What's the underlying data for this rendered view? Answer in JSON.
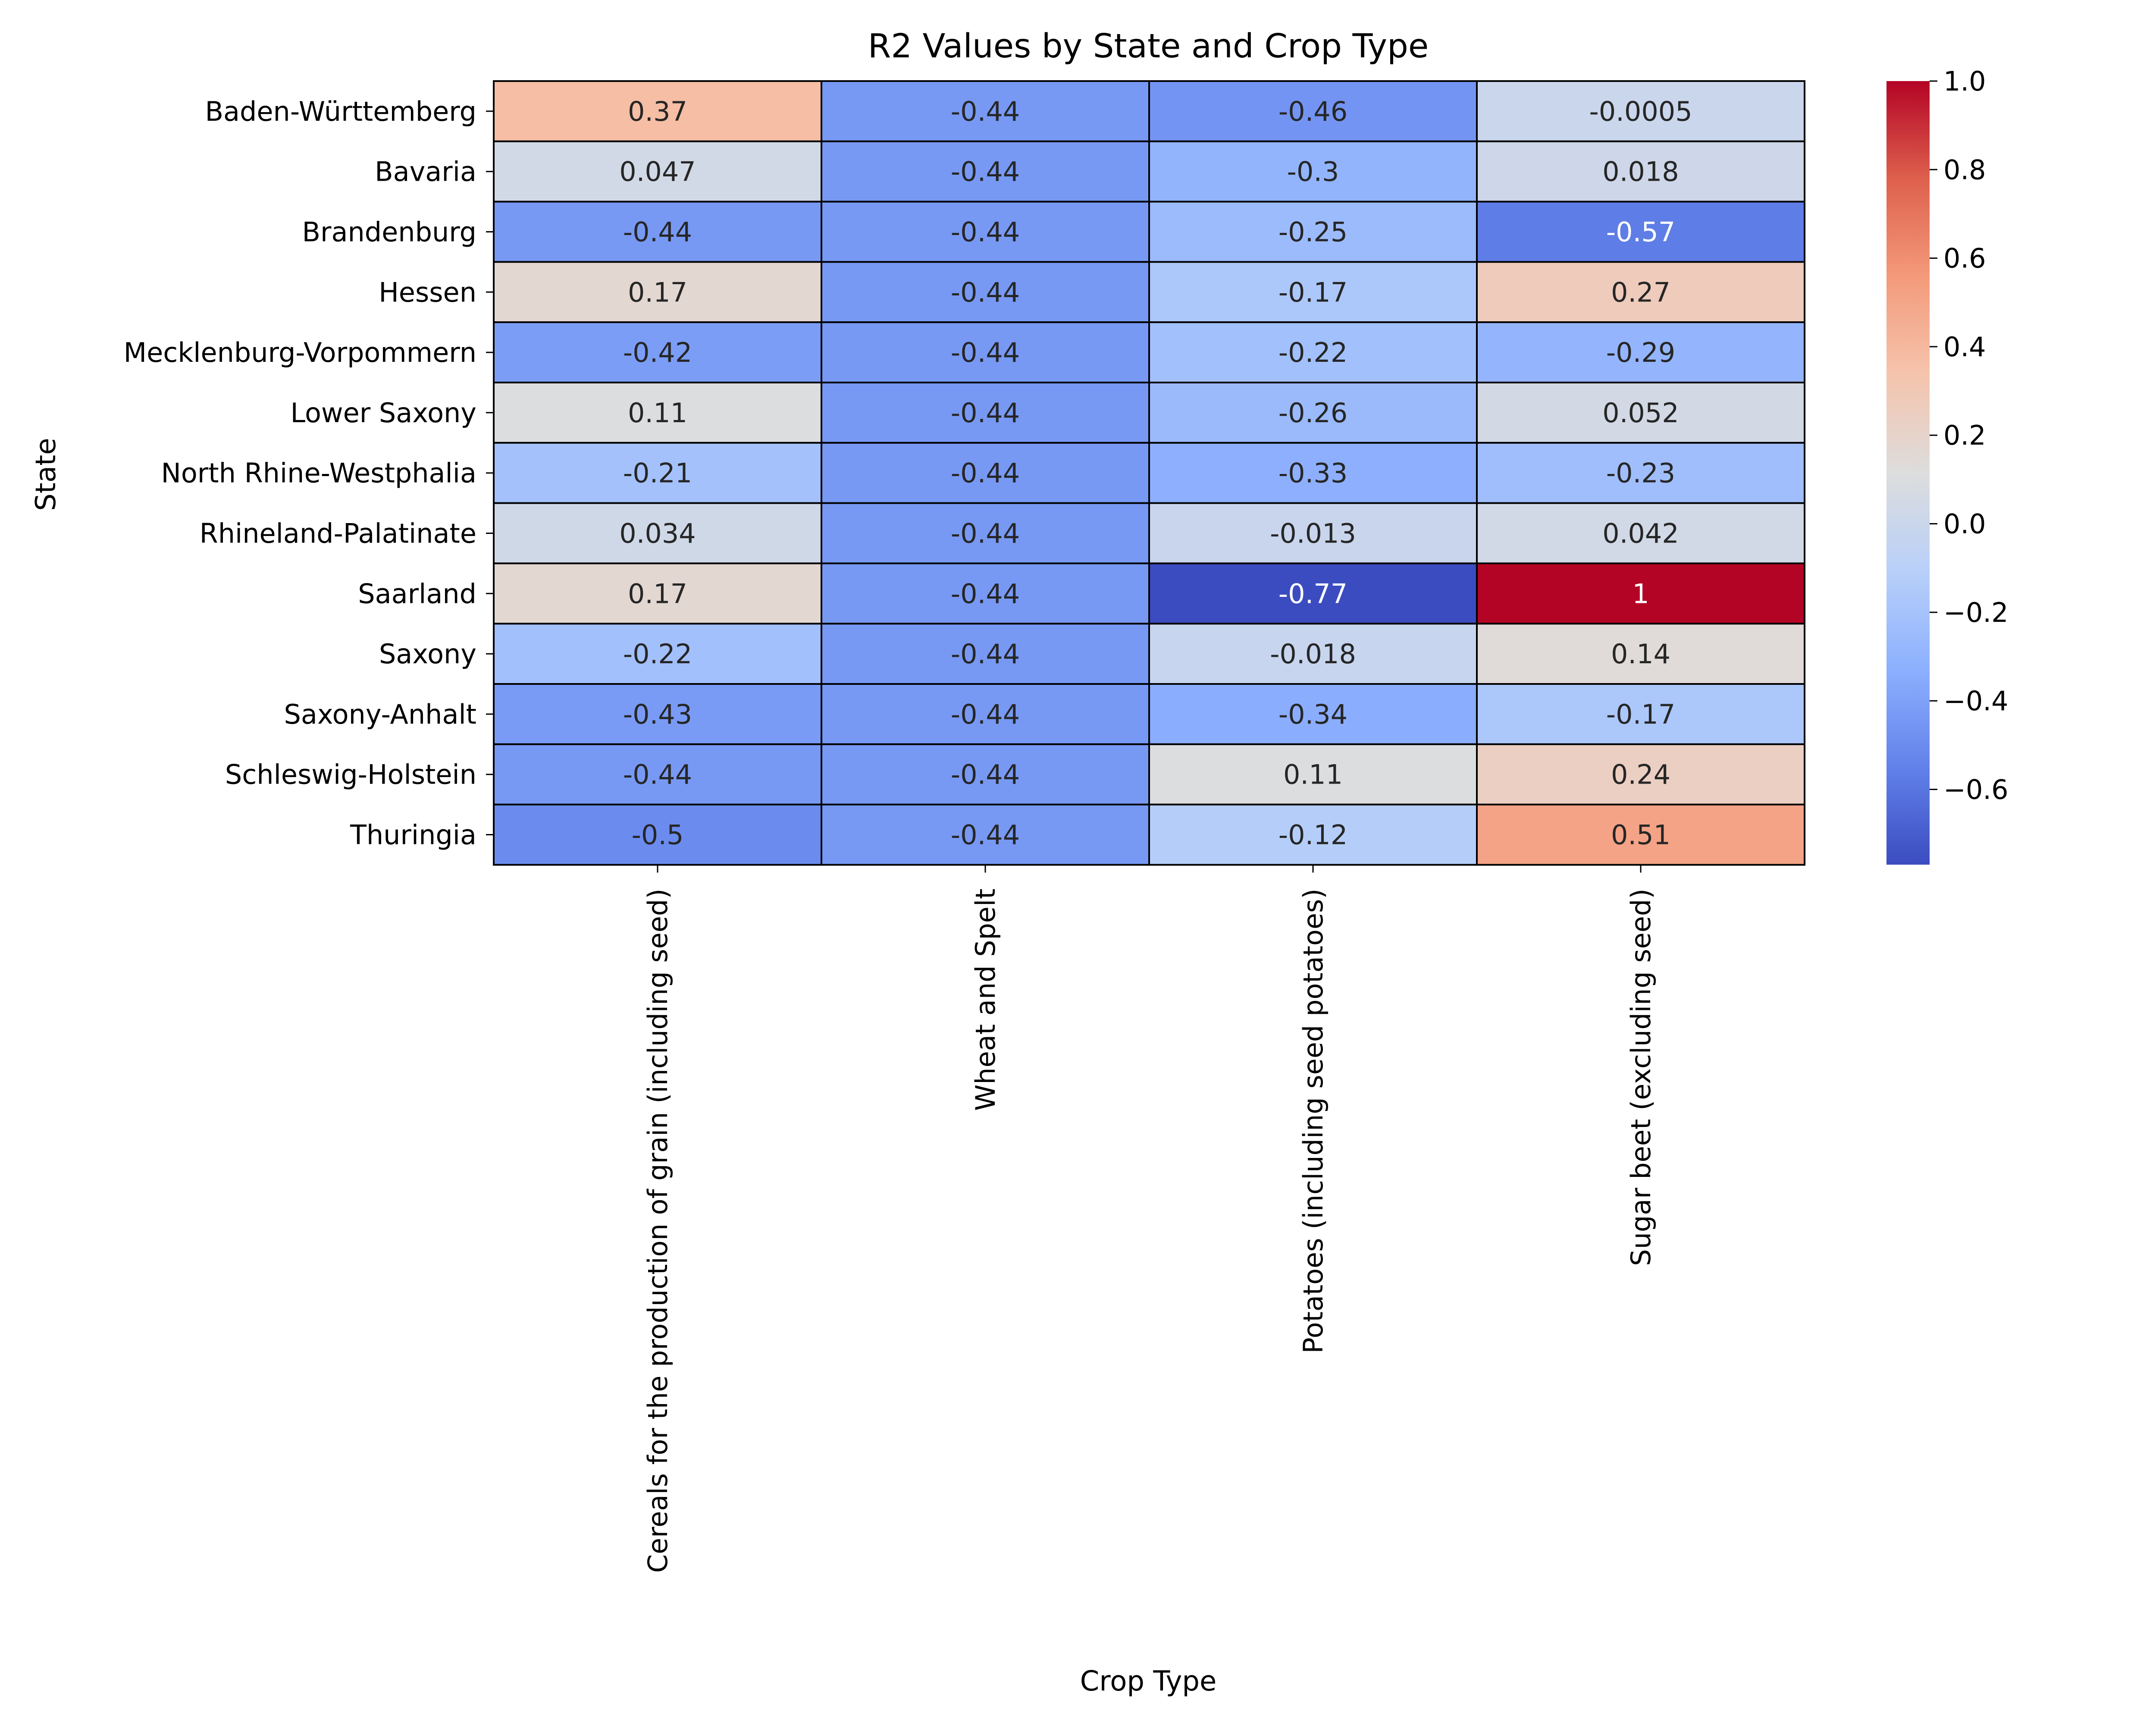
{
  "chart_data": {
    "type": "heatmap",
    "title": "R2 Values by State and Crop Type",
    "xlabel": "Crop Type",
    "ylabel": "State",
    "x_categories": [
      "Cereals for the production of grain (including seed)",
      "Wheat and Spelt",
      "Potatoes (including seed potatoes)",
      "Sugar beet (excluding seed)"
    ],
    "y_categories": [
      "Baden-Württemberg",
      "Bavaria",
      "Brandenburg",
      "Hessen",
      "Mecklenburg-Vorpommern",
      "Lower Saxony",
      "North Rhine-Westphalia",
      "Rhineland-Palatinate",
      "Saarland",
      "Saxony",
      "Saxony-Anhalt",
      "Schleswig-Holstein",
      "Thuringia"
    ],
    "values": [
      [
        0.37,
        -0.44,
        -0.46,
        -0.0005
      ],
      [
        0.047,
        -0.44,
        -0.3,
        0.018
      ],
      [
        -0.44,
        -0.44,
        -0.25,
        -0.57
      ],
      [
        0.17,
        -0.44,
        -0.17,
        0.27
      ],
      [
        -0.42,
        -0.44,
        -0.22,
        -0.29
      ],
      [
        0.11,
        -0.44,
        -0.26,
        0.052
      ],
      [
        -0.21,
        -0.44,
        -0.33,
        -0.23
      ],
      [
        0.034,
        -0.44,
        -0.013,
        0.042
      ],
      [
        0.17,
        -0.44,
        -0.77,
        1
      ],
      [
        -0.22,
        -0.44,
        -0.018,
        0.14
      ],
      [
        -0.43,
        -0.44,
        -0.34,
        -0.17
      ],
      [
        -0.44,
        -0.44,
        0.11,
        0.24
      ],
      [
        -0.5,
        -0.44,
        -0.12,
        0.51
      ]
    ],
    "value_labels": [
      [
        "0.37",
        "-0.44",
        "-0.46",
        "-0.0005"
      ],
      [
        "0.047",
        "-0.44",
        "-0.3",
        "0.018"
      ],
      [
        "-0.44",
        "-0.44",
        "-0.25",
        "-0.57"
      ],
      [
        "0.17",
        "-0.44",
        "-0.17",
        "0.27"
      ],
      [
        "-0.42",
        "-0.44",
        "-0.22",
        "-0.29"
      ],
      [
        "0.11",
        "-0.44",
        "-0.26",
        "0.052"
      ],
      [
        "-0.21",
        "-0.44",
        "-0.33",
        "-0.23"
      ],
      [
        "0.034",
        "-0.44",
        "-0.013",
        "0.042"
      ],
      [
        "0.17",
        "-0.44",
        "-0.77",
        "1"
      ],
      [
        "-0.22",
        "-0.44",
        "-0.018",
        "0.14"
      ],
      [
        "-0.43",
        "-0.44",
        "-0.34",
        "-0.17"
      ],
      [
        "-0.44",
        "-0.44",
        "0.11",
        "0.24"
      ],
      [
        "-0.5",
        "-0.44",
        "-0.12",
        "0.51"
      ]
    ],
    "colormap": "coolwarm",
    "color_range": [
      -0.77,
      1
    ],
    "colorbar_ticks": [
      1.0,
      0.8,
      0.6,
      0.4,
      0.2,
      0.0,
      -0.2,
      -0.4,
      -0.6
    ],
    "colorbar_tick_labels": [
      "1.0",
      "0.8",
      "0.6",
      "0.4",
      "0.2",
      "0.0",
      "−0.2",
      "−0.4",
      "−0.6"
    ],
    "cell_border_color": "#000000",
    "grid": false,
    "legend": "colorbar-right"
  }
}
